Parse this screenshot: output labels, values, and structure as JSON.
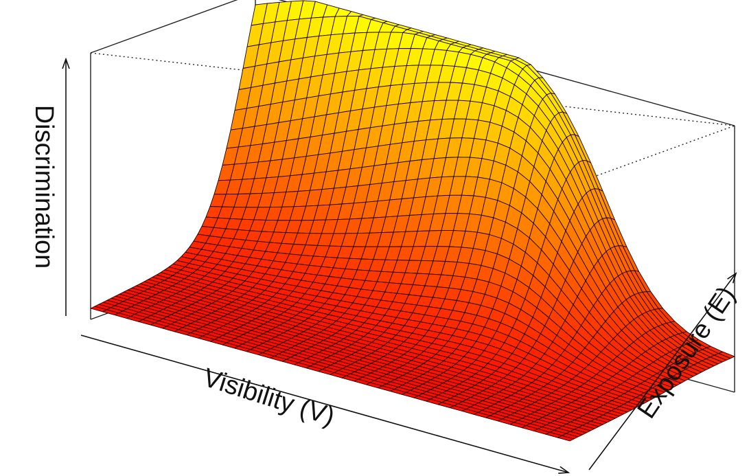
{
  "chart_data": {
    "type": "surface",
    "title": "",
    "xlabel": "Visibility (V)",
    "ylabel": "Exposure (E)",
    "zlabel": "Discrimination",
    "x_range": [
      0,
      1
    ],
    "y_range": [
      0,
      1
    ],
    "grid_size": [
      41,
      41
    ],
    "surface_description": "Discrimination is low at the front corners and rises smoothly to a single peak near the back-right corner (high Visibility, high Exposure), falling again toward the far right edge.",
    "colormap": [
      "#ff0000",
      "#ff4000",
      "#ff8000",
      "#ffbf00",
      "#ffff00"
    ],
    "mesh_line_color": "#1a0000",
    "box_color": "#222222",
    "grid": false
  }
}
